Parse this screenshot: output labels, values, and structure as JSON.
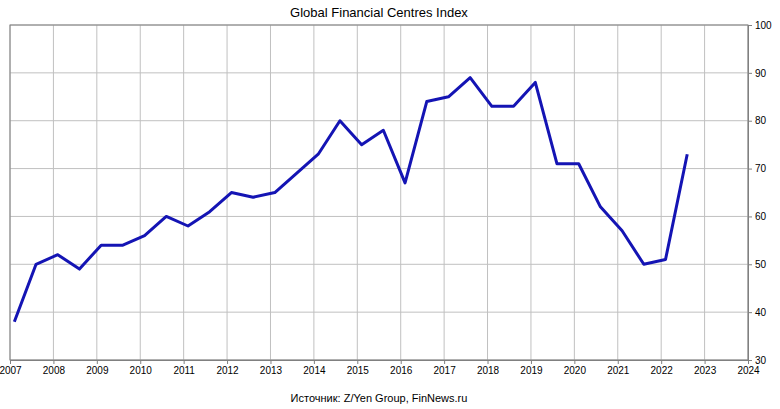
{
  "chart_data": {
    "type": "line",
    "title": "Global Financial Centres Index",
    "source": "Источник: Z/Yen Group, FinNews.ru",
    "x": [
      2007.1,
      2007.6,
      2008.1,
      2008.6,
      2009.1,
      2009.6,
      2010.1,
      2010.6,
      2011.1,
      2011.6,
      2012.1,
      2012.6,
      2013.1,
      2013.6,
      2014.1,
      2014.6,
      2015.1,
      2015.6,
      2016.1,
      2016.6,
      2017.1,
      2017.6,
      2018.1,
      2018.6,
      2019.1,
      2019.6,
      2020.1,
      2020.6,
      2021.1,
      2021.6,
      2022.1,
      2022.6
    ],
    "values": [
      38,
      50,
      52,
      49,
      54,
      54,
      56,
      60,
      58,
      61,
      65,
      64,
      65,
      69,
      73,
      80,
      75,
      78,
      67,
      84,
      85,
      89,
      83,
      83,
      88,
      71,
      71,
      62,
      57,
      50,
      51,
      73
    ],
    "color": "#1414b4",
    "xlim": [
      2007,
      2024
    ],
    "xticks": [
      2007,
      2008,
      2009,
      2010,
      2011,
      2012,
      2013,
      2014,
      2015,
      2016,
      2017,
      2018,
      2019,
      2020,
      2021,
      2022,
      2023,
      2024
    ],
    "ylim": [
      30,
      100
    ],
    "yticks": [
      30,
      40,
      50,
      60,
      70,
      80,
      90,
      100
    ],
    "grid": true
  }
}
